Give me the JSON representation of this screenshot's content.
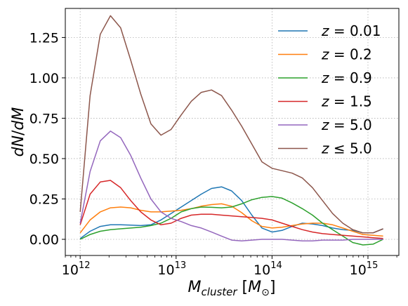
{
  "chart_data": {
    "type": "line",
    "title": "",
    "xlabel": "M_cluster [M_⊙]",
    "ylabel": "dN/dM",
    "xscale": "log",
    "xlim": [
      700000000000.0,
      2100000000000000.0
    ],
    "ylim": [
      -0.1,
      1.43
    ],
    "grid": true,
    "legend_position": "top-right",
    "x_ticks": [
      {
        "value": 1000000000000.0,
        "base": "10",
        "exp": "12"
      },
      {
        "value": 10000000000000.0,
        "base": "10",
        "exp": "13"
      },
      {
        "value": 100000000000000.0,
        "base": "10",
        "exp": "14"
      },
      {
        "value": 1000000000000000.0,
        "base": "10",
        "exp": "15"
      }
    ],
    "y_ticks": [
      {
        "value": 0.0,
        "label": "0.00"
      },
      {
        "value": 0.25,
        "label": "0.25"
      },
      {
        "value": 0.5,
        "label": "0.50"
      },
      {
        "value": 0.75,
        "label": "0.75"
      },
      {
        "value": 1.0,
        "label": "1.00"
      },
      {
        "value": 1.25,
        "label": "1.25"
      }
    ],
    "x": [
      1000000000000.0,
      1270000000000.0,
      1620000000000.0,
      2070000000000.0,
      2640000000000.0,
      3360000000000.0,
      4280000000000.0,
      5460000000000.0,
      6950000000000.0,
      8860000000000.0,
      11300000000000.0,
      14400000000000.0,
      18300000000000.0,
      23400000000000.0,
      29800000000000.0,
      37900000000000.0,
      48300000000000.0,
      61600000000000.0,
      78500000000000.0,
      100000000000000.0,
      127000000000000.0,
      162000000000000.0,
      207000000000000.0,
      264000000000000.0,
      336000000000000.0,
      428000000000000.0,
      546000000000000.0,
      695000000000000.0,
      886000000000000.0,
      1130000000000000.0,
      1440000000000000.0
    ],
    "series": [
      {
        "name": "z = 0.01",
        "color": "#1f77b4",
        "values": [
          0.005,
          0.05,
          0.08,
          0.09,
          0.09,
          0.088,
          0.085,
          0.09,
          0.12,
          0.16,
          0.2,
          0.24,
          0.28,
          0.315,
          0.325,
          0.3,
          0.24,
          0.15,
          0.07,
          0.045,
          0.055,
          0.08,
          0.1,
          0.095,
          0.085,
          0.07,
          0.06,
          0.055,
          0.04,
          0.04,
          0.065
        ]
      },
      {
        "name": "z = 0.2",
        "color": "#ff7f0e",
        "values": [
          0.04,
          0.12,
          0.17,
          0.195,
          0.2,
          0.195,
          0.18,
          0.17,
          0.17,
          0.175,
          0.18,
          0.19,
          0.205,
          0.215,
          0.22,
          0.205,
          0.165,
          0.115,
          0.08,
          0.07,
          0.075,
          0.085,
          0.095,
          0.1,
          0.1,
          0.09,
          0.07,
          0.05,
          0.03,
          0.025,
          0.02
        ]
      },
      {
        "name": "z = 0.9",
        "color": "#2ca02c",
        "values": [
          0.0,
          0.03,
          0.05,
          0.06,
          0.065,
          0.07,
          0.075,
          0.085,
          0.1,
          0.13,
          0.17,
          0.19,
          0.2,
          0.198,
          0.195,
          0.2,
          0.22,
          0.245,
          0.26,
          0.265,
          0.255,
          0.225,
          0.19,
          0.15,
          0.1,
          0.06,
          0.02,
          -0.02,
          -0.035,
          -0.03,
          0.0
        ]
      },
      {
        "name": "z = 1.5",
        "color": "#d62728",
        "values": [
          0.09,
          0.28,
          0.355,
          0.365,
          0.32,
          0.24,
          0.17,
          0.12,
          0.09,
          0.1,
          0.13,
          0.15,
          0.155,
          0.155,
          0.15,
          0.145,
          0.14,
          0.135,
          0.13,
          0.12,
          0.1,
          0.08,
          0.06,
          0.045,
          0.035,
          0.03,
          0.025,
          0.02,
          0.015,
          0.01,
          0.005
        ]
      },
      {
        "name": "z = 5.0",
        "color": "#9467bd",
        "values": [
          0.1,
          0.42,
          0.61,
          0.67,
          0.63,
          0.52,
          0.38,
          0.25,
          0.17,
          0.13,
          0.11,
          0.085,
          0.07,
          0.045,
          0.02,
          -0.005,
          -0.01,
          -0.005,
          0.0,
          0.0,
          0.0,
          -0.005,
          -0.01,
          -0.01,
          -0.005,
          -0.005,
          -0.005,
          0.0,
          0.0,
          0.0,
          0.0
        ]
      },
      {
        "name": "z ≤ 5.0",
        "color": "#8c564b",
        "values": [
          0.17,
          0.89,
          1.27,
          1.385,
          1.31,
          1.11,
          0.9,
          0.715,
          0.645,
          0.68,
          0.77,
          0.855,
          0.91,
          0.925,
          0.89,
          0.8,
          0.7,
          0.59,
          0.48,
          0.44,
          0.425,
          0.41,
          0.38,
          0.32,
          0.24,
          0.16,
          0.1,
          0.06,
          0.04,
          0.04,
          0.065
        ]
      }
    ],
    "legend_labels": [
      {
        "sym": "z",
        "op": " = ",
        "val": "0.01"
      },
      {
        "sym": "z",
        "op": " = ",
        "val": "0.2"
      },
      {
        "sym": "z",
        "op": " = ",
        "val": "0.9"
      },
      {
        "sym": "z",
        "op": " = ",
        "val": "1.5"
      },
      {
        "sym": "z",
        "op": " = ",
        "val": "5.0"
      },
      {
        "sym": "z",
        "op": " ≤ ",
        "val": "5.0"
      }
    ],
    "ylabel_parts": {
      "a": "dN",
      "slash": "/",
      "b": "dM"
    },
    "xlabel_parts": {
      "m": "M",
      "sub": "cluster",
      "open": " [",
      "m2": "M",
      "sun": "⊙",
      "close": "]"
    }
  }
}
